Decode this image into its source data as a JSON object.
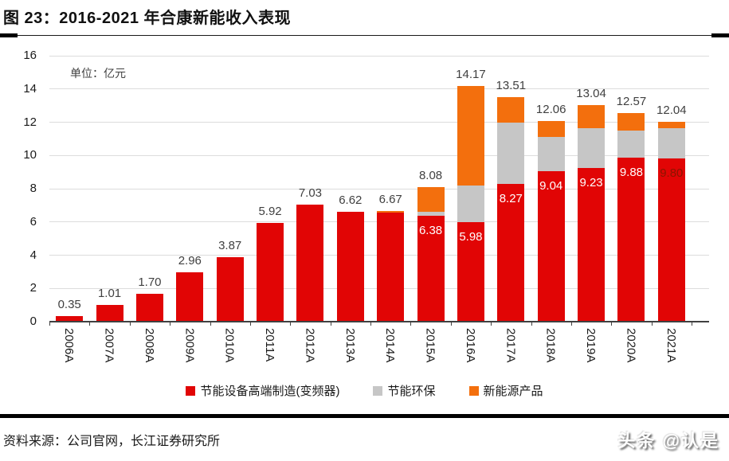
{
  "header": {
    "title": "图 23：2016-2021 年合康新能收入表现"
  },
  "footer": {
    "source": "资料来源：公司官网，长江证券研究所",
    "watermark": "头条 @认是"
  },
  "chart_data": {
    "type": "bar",
    "stacked": true,
    "title": "图 23：2016-2021 年合康新能收入表现",
    "unit_label": "单位：亿元",
    "categories": [
      "2006A",
      "2007A",
      "2008A",
      "2009A",
      "2010A",
      "2011A",
      "2012A",
      "2013A",
      "2014A",
      "2015A",
      "2016A",
      "2017A",
      "2018A",
      "2019A",
      "2020A",
      "2021A"
    ],
    "series": [
      {
        "name": "节能设备高端制造(变频器)",
        "color": "#e10505",
        "values": [
          0.35,
          1.01,
          1.7,
          2.96,
          3.87,
          5.92,
          7.03,
          6.62,
          6.57,
          6.38,
          5.98,
          8.27,
          9.04,
          9.23,
          9.88,
          9.8
        ]
      },
      {
        "name": "节能环保",
        "color": "#c6c6c6",
        "values": [
          0,
          0,
          0,
          0,
          0,
          0,
          0,
          0,
          0,
          0.25,
          2.2,
          3.7,
          2.05,
          2.4,
          1.6,
          1.84
        ]
      },
      {
        "name": "新能源产品",
        "color": "#f36f0d",
        "values": [
          0,
          0,
          0,
          0,
          0,
          0,
          0,
          0,
          0.1,
          1.45,
          5.99,
          1.54,
          0.97,
          1.41,
          1.09,
          0.4
        ]
      }
    ],
    "totals": [
      0.35,
      1.01,
      1.7,
      2.96,
      3.87,
      5.92,
      7.03,
      6.62,
      6.67,
      8.08,
      14.17,
      13.51,
      12.06,
      13.04,
      12.57,
      12.04
    ],
    "total_labels": [
      "0.35",
      "1.01",
      "1.70",
      "2.96",
      "3.87",
      "5.92",
      "7.03",
      "6.62",
      "6.67",
      "8.08",
      "14.17",
      "13.51",
      "12.06",
      "13.04",
      "12.57",
      "12.04"
    ],
    "inside_labels": [
      "",
      "",
      "",
      "",
      "",
      "",
      "",
      "",
      "",
      "6.38",
      "5.98",
      "8.27",
      "9.04",
      "9.23",
      "9.88",
      "9.80"
    ],
    "inside_label_colors": [
      "",
      "",
      "",
      "",
      "",
      "",
      "",
      "",
      "",
      "#ffffff",
      "#ffffff",
      "#ffffff",
      "#ffffff",
      "#ffffff",
      "#ffffff",
      "#8b1500"
    ],
    "y_ticks": [
      0,
      2,
      4,
      6,
      8,
      10,
      12,
      14,
      16
    ],
    "ylim": [
      0,
      16
    ],
    "grid": true,
    "legend_position": "bottom",
    "colors": {
      "gridline": "#dcdcdc",
      "axis": "#404040",
      "total_label": "#404040"
    }
  }
}
